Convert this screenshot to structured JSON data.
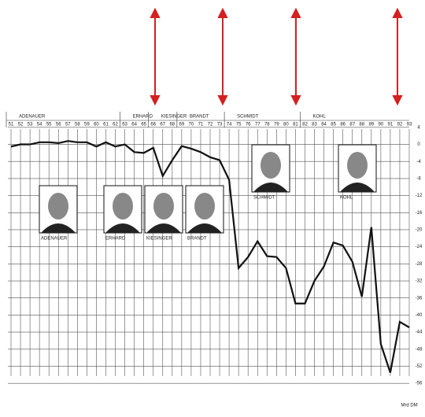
{
  "chart_data": {
    "type": "line",
    "eras": [
      {
        "name": "ADENAUER",
        "start": 1951
      },
      {
        "name": "ERHARD",
        "start": 1963
      },
      {
        "name": "KIESINGER",
        "start": 1966
      },
      {
        "name": "BRANDT",
        "start": 1969
      },
      {
        "name": "SCHMIDT",
        "start": 1974
      },
      {
        "name": "KOHL",
        "start": 1982
      }
    ],
    "portraits": [
      "ADENAUER",
      "ERHARD",
      "KIESINGER",
      "BRANDT",
      "SCHMIDT",
      "KOHL"
    ],
    "x": [
      1951,
      1952,
      1953,
      1954,
      1955,
      1956,
      1957,
      1958,
      1959,
      1960,
      1961,
      1962,
      1963,
      1964,
      1965,
      1966,
      1967,
      1968,
      1969,
      1970,
      1971,
      1972,
      1973,
      1974,
      1975,
      1976,
      1977,
      1978,
      1979,
      1980,
      1981,
      1982,
      1983,
      1984,
      1985,
      1986,
      1987,
      1988,
      1989,
      1990,
      1991,
      1992,
      1993
    ],
    "xlim": [
      1951,
      1993
    ],
    "xticks": [
      {
        "value": 1951,
        "label": "51"
      },
      {
        "value": 1952,
        "label": "52"
      },
      {
        "value": 1953,
        "label": "53"
      },
      {
        "value": 1954,
        "label": "54"
      },
      {
        "value": 1955,
        "label": "55"
      },
      {
        "value": 1956,
        "label": "56"
      },
      {
        "value": 1957,
        "label": "57"
      },
      {
        "value": 1958,
        "label": "58"
      },
      {
        "value": 1959,
        "label": "59"
      },
      {
        "value": 1960,
        "label": "60"
      },
      {
        "value": 1961,
        "label": "61"
      },
      {
        "value": 1962,
        "label": "62"
      },
      {
        "value": 1963,
        "label": "63"
      },
      {
        "value": 1964,
        "label": "64"
      },
      {
        "value": 1965,
        "label": "65"
      },
      {
        "value": 1966,
        "label": "66"
      },
      {
        "value": 1967,
        "label": "67"
      },
      {
        "value": 1968,
        "label": "68"
      },
      {
        "value": 1969,
        "label": "69"
      },
      {
        "value": 1970,
        "label": "70"
      },
      {
        "value": 1971,
        "label": "71"
      },
      {
        "value": 1972,
        "label": "72"
      },
      {
        "value": 1973,
        "label": "73"
      },
      {
        "value": 1974,
        "label": "74"
      },
      {
        "value": 1975,
        "label": "75"
      },
      {
        "value": 1976,
        "label": "76"
      },
      {
        "value": 1977,
        "label": "77"
      },
      {
        "value": 1978,
        "label": "78"
      },
      {
        "value": 1979,
        "label": "79"
      },
      {
        "value": 1980,
        "label": "80"
      },
      {
        "value": 1981,
        "label": "81"
      },
      {
        "value": 1982,
        "label": "82"
      },
      {
        "value": 1983,
        "label": "83"
      },
      {
        "value": 1984,
        "label": "84"
      },
      {
        "value": 1985,
        "label": "85"
      },
      {
        "value": 1986,
        "label": "86"
      },
      {
        "value": 1987,
        "label": "87"
      },
      {
        "value": 1988,
        "label": "88"
      },
      {
        "value": 1989,
        "label": "89"
      },
      {
        "value": 1990,
        "label": "90"
      },
      {
        "value": 1991,
        "label": "91"
      },
      {
        "value": 1992,
        "label": "92"
      },
      {
        "value": 1993,
        "label": "93"
      }
    ],
    "values": [
      -0.5,
      0,
      0,
      0.5,
      0.5,
      0.3,
      0.8,
      0.5,
      0.5,
      -0.5,
      0.5,
      -0.5,
      0,
      -1.8,
      -2,
      -0.8,
      -7.4,
      -3.7,
      -0.4,
      -1,
      -1.8,
      -3,
      -3.7,
      -8.3,
      -29,
      -26.4,
      -22.7,
      -26.2,
      -26.4,
      -29,
      -37.3,
      -37.3,
      -32,
      -28.6,
      -23,
      -23.7,
      -27.5,
      -35.7,
      -19.4,
      -46.8,
      -53.5,
      -41.6,
      -42.9
    ],
    "color": "#111",
    "ylim": [
      -58,
      6
    ],
    "yticks": [
      4,
      0,
      -4,
      -8,
      -12,
      -16,
      -20,
      -24,
      -28,
      -32,
      -36,
      -40,
      -44,
      -48,
      -52,
      -56
    ],
    "y_label": "Mrd DM",
    "grid": true
  }
}
